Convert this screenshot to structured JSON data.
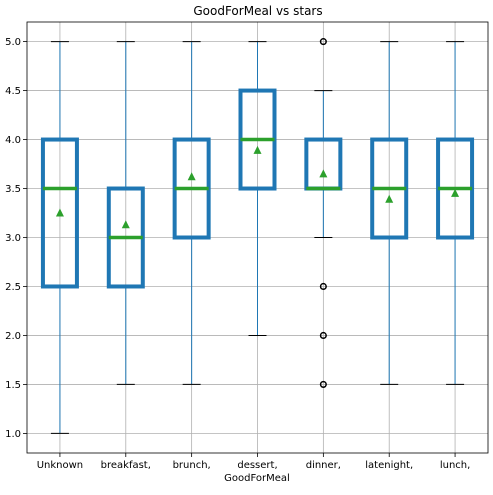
{
  "chart_data": {
    "type": "boxplot",
    "title": "GoodForMeal vs stars",
    "xlabel": "GoodForMeal",
    "ylabel": "",
    "ylim": [
      0.8,
      5.2
    ],
    "yticks": [
      1.0,
      1.5,
      2.0,
      2.5,
      3.0,
      3.5,
      4.0,
      4.5,
      5.0
    ],
    "ytick_labels": [
      "1.0",
      "1.5",
      "2.0",
      "2.5",
      "3.0",
      "3.5",
      "4.0",
      "4.5",
      "5.0"
    ],
    "grid": true,
    "categories": [
      "Unknown",
      "breakfast,",
      "brunch,",
      "dessert,",
      "dinner,",
      "latenight,",
      "lunch,"
    ],
    "boxes": [
      {
        "whislo": 1.0,
        "q1": 2.5,
        "med": 3.5,
        "q3": 4.0,
        "whishi": 5.0,
        "mean": 3.25,
        "fliers": []
      },
      {
        "whislo": 1.5,
        "q1": 2.5,
        "med": 3.0,
        "q3": 3.5,
        "whishi": 5.0,
        "mean": 3.13,
        "fliers": []
      },
      {
        "whislo": 1.5,
        "q1": 3.0,
        "med": 3.5,
        "q3": 4.0,
        "whishi": 5.0,
        "mean": 3.62,
        "fliers": []
      },
      {
        "whislo": 2.0,
        "q1": 3.5,
        "med": 4.0,
        "q3": 4.5,
        "whishi": 5.0,
        "mean": 3.89,
        "fliers": []
      },
      {
        "whislo": 3.0,
        "q1": 3.5,
        "med": 3.5,
        "q3": 4.0,
        "whishi": 4.5,
        "mean": 3.65,
        "fliers": [
          1.5,
          2.0,
          2.5,
          5.0
        ]
      },
      {
        "whislo": 1.5,
        "q1": 3.0,
        "med": 3.5,
        "q3": 4.0,
        "whishi": 5.0,
        "mean": 3.39,
        "fliers": []
      },
      {
        "whislo": 1.5,
        "q1": 3.0,
        "med": 3.5,
        "q3": 4.0,
        "whishi": 5.0,
        "mean": 3.45,
        "fliers": []
      }
    ],
    "colors": {
      "box": "#1f77b4",
      "median": "#2ca02c",
      "mean": "#2ca02c",
      "whisker": "#1f77b4",
      "cap": "#000000",
      "flier": "#000000"
    }
  }
}
